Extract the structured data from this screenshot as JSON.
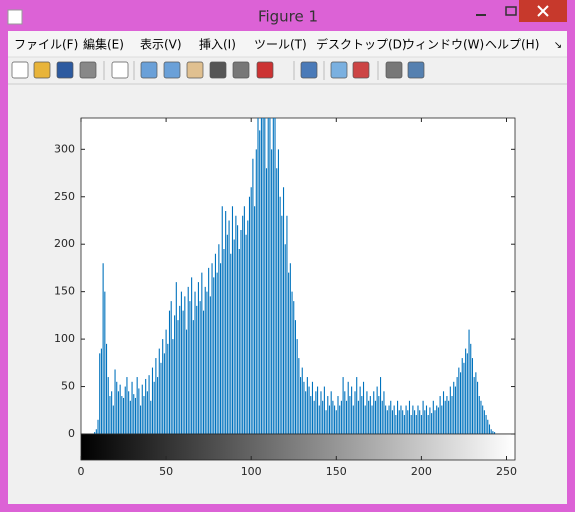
{
  "window": {
    "title": "Figure 1"
  },
  "menu": [
    "ファイル(F)",
    "編集(E)",
    "表示(V)",
    "挿入(I)",
    "ツール(T)",
    "デスクトップ(D)",
    "ウィンドウ(W)",
    "ヘルプ(H)"
  ],
  "chart_data": {
    "type": "stem",
    "color": "#0072bd",
    "values": [
      0,
      0,
      0,
      0,
      0,
      0,
      0,
      0,
      2,
      5,
      15,
      85,
      90,
      180,
      150,
      95,
      60,
      40,
      45,
      30,
      68,
      55,
      45,
      52,
      40,
      38,
      50,
      60,
      45,
      35,
      55,
      42,
      38,
      60,
      48,
      30,
      52,
      40,
      58,
      45,
      62,
      35,
      70,
      55,
      80,
      60,
      90,
      75,
      100,
      85,
      110,
      95,
      130,
      140,
      100,
      125,
      160,
      120,
      135,
      150,
      130,
      145,
      110,
      155,
      140,
      165,
      120,
      150,
      135,
      160,
      140,
      170,
      130,
      155,
      150,
      175,
      145,
      180,
      165,
      190,
      170,
      200,
      180,
      240,
      195,
      235,
      210,
      225,
      190,
      240,
      205,
      230,
      220,
      195,
      215,
      230,
      240,
      210,
      225,
      250,
      260,
      290,
      240,
      300,
      333,
      320,
      333,
      333,
      333,
      280,
      333,
      333,
      300,
      333,
      333,
      280,
      300,
      250,
      230,
      260,
      200,
      230,
      170,
      180,
      150,
      140,
      120,
      100,
      80,
      60,
      70,
      55,
      45,
      60,
      50,
      40,
      55,
      35,
      45,
      50,
      30,
      45,
      35,
      50,
      25,
      40,
      30,
      45,
      35,
      30,
      25,
      40,
      30,
      35,
      60,
      45,
      35,
      55,
      40,
      50,
      30,
      45,
      60,
      35,
      50,
      40,
      55,
      30,
      45,
      35,
      40,
      30,
      45,
      35,
      50,
      40,
      60,
      35,
      45,
      30,
      25,
      30,
      35,
      25,
      30,
      20,
      35,
      25,
      30,
      25,
      20,
      30,
      25,
      35,
      20,
      30,
      25,
      20,
      30,
      25,
      20,
      35,
      25,
      30,
      20,
      28,
      22,
      35,
      25,
      30,
      28,
      40,
      30,
      45,
      35,
      40,
      35,
      50,
      40,
      55,
      50,
      60,
      70,
      65,
      80,
      75,
      90,
      85,
      110,
      95,
      80,
      60,
      65,
      55,
      40,
      35,
      30,
      25,
      20,
      15,
      10,
      5,
      3,
      2,
      0,
      0,
      0,
      0,
      0,
      0,
      0,
      0,
      0,
      0,
      0,
      0
    ],
    "xlim": [
      0,
      255
    ],
    "xticks": [
      0,
      50,
      100,
      150,
      200,
      250
    ],
    "ylim": [
      0,
      333
    ],
    "yticks": [
      0,
      50,
      100,
      150,
      200,
      250,
      300
    ]
  }
}
